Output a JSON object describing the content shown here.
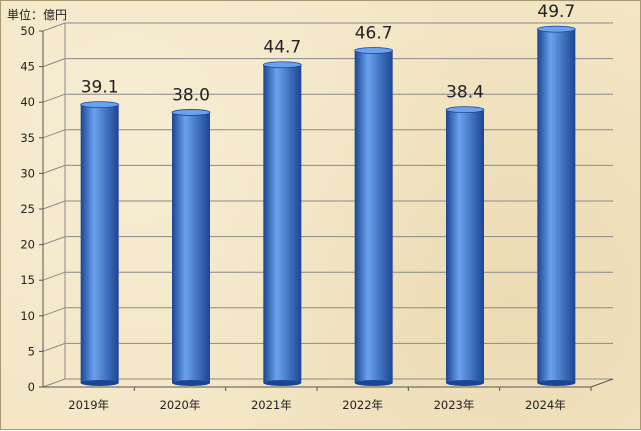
{
  "unit_label": "単位：億円",
  "colors": {
    "bar": "#2f6fd0",
    "bar_dark": "#1b4592",
    "bar_light": "#6aa2ef",
    "grid": "#8a8a8a",
    "axis": "#555555",
    "background": "#f3e6c4"
  },
  "chart_data": {
    "type": "bar",
    "title": "",
    "xlabel": "",
    "ylabel": "単位：億円",
    "categories": [
      "2019年",
      "2020年",
      "2021年",
      "2022年",
      "2023年",
      "2024年"
    ],
    "values": [
      39.1,
      38.0,
      44.7,
      46.7,
      38.4,
      49.7
    ],
    "value_labels": [
      "39.1",
      "38.0",
      "44.7",
      "46.7",
      "38.4",
      "49.7"
    ],
    "ylim": [
      0,
      50
    ],
    "yticks": [
      0,
      5,
      10,
      15,
      20,
      25,
      30,
      35,
      40,
      45,
      50
    ],
    "grid": true,
    "legend": "none"
  }
}
